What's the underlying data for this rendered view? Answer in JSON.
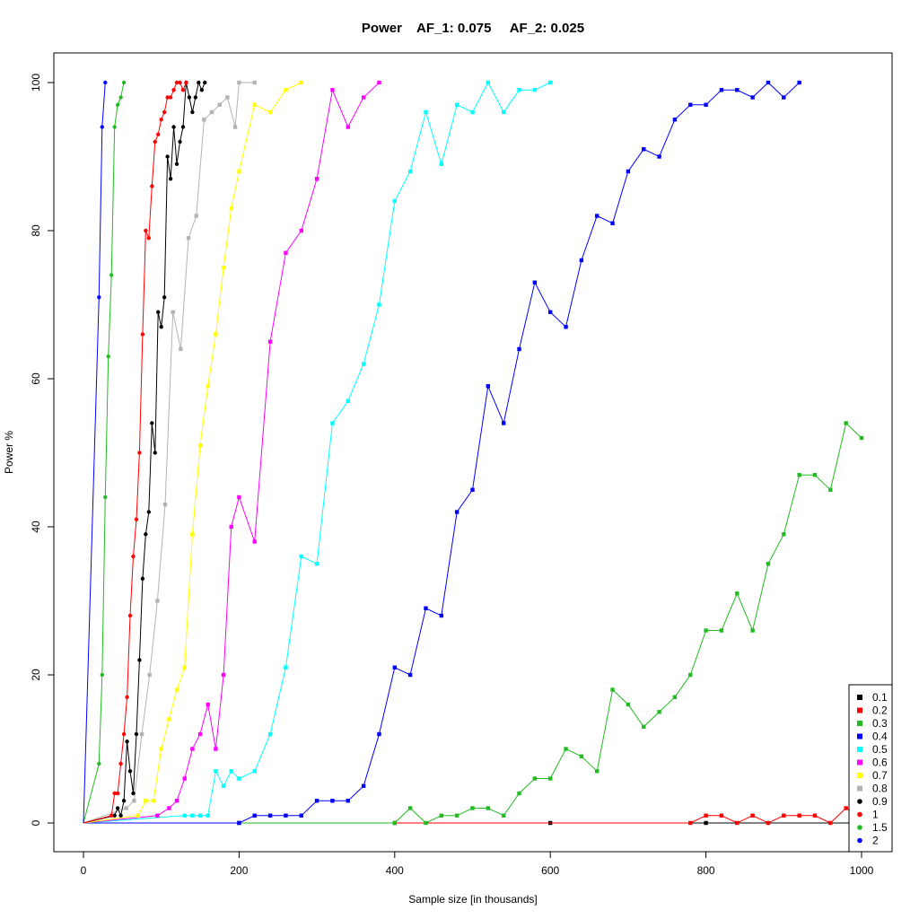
{
  "chart_data": {
    "type": "line",
    "title": "Power    AF_1: 0.075     AF_2: 0.025",
    "xlabel": "Sample size [in thousands]",
    "ylabel": "Power %",
    "xlim": [
      0,
      1000
    ],
    "ylim": [
      0,
      100
    ],
    "xticks": [
      0,
      200,
      400,
      600,
      800,
      1000
    ],
    "yticks": [
      0,
      20,
      40,
      60,
      80,
      100
    ],
    "grid": false,
    "legend_position": "bottom-right",
    "series": [
      {
        "name": "0.1",
        "color": "#000000",
        "marker": "square",
        "x": [
          0,
          200,
          400,
          600,
          800,
          1000
        ],
        "y": [
          0,
          0,
          0,
          0,
          0,
          0
        ]
      },
      {
        "name": "0.2",
        "color": "#ff0000",
        "marker": "square",
        "x": [
          0,
          780,
          800,
          820,
          840,
          860,
          880,
          900,
          920,
          940,
          960,
          980,
          1000
        ],
        "y": [
          0,
          0,
          1,
          1,
          0,
          1,
          0,
          1,
          1,
          1,
          0,
          2,
          1
        ]
      },
      {
        "name": "0.3",
        "color": "#22bb22",
        "marker": "square",
        "x": [
          0,
          400,
          420,
          440,
          460,
          480,
          500,
          520,
          540,
          560,
          580,
          600,
          620,
          640,
          660,
          680,
          700,
          720,
          740,
          760,
          780,
          800,
          820,
          840,
          860,
          880,
          900,
          920,
          940,
          960,
          980,
          1000
        ],
        "y": [
          0,
          0,
          2,
          0,
          1,
          1,
          2,
          2,
          1,
          4,
          6,
          6,
          10,
          9,
          7,
          18,
          16,
          13,
          15,
          17,
          20,
          26,
          26,
          31,
          26,
          35,
          39,
          47,
          47,
          45,
          54,
          52
        ]
      },
      {
        "name": "0.4",
        "color": "#0000ff",
        "marker": "square",
        "x": [
          0,
          200,
          220,
          240,
          260,
          280,
          300,
          320,
          340,
          360,
          380,
          400,
          420,
          440,
          460,
          480,
          500,
          520,
          540,
          560,
          580,
          600,
          620,
          640,
          660,
          680,
          700,
          720,
          740,
          760,
          780,
          800,
          820,
          840,
          860,
          880,
          900,
          920
        ],
        "y": [
          0,
          0,
          1,
          1,
          1,
          1,
          3,
          3,
          3,
          5,
          12,
          21,
          20,
          29,
          28,
          42,
          45,
          59,
          54,
          64,
          73,
          69,
          67,
          76,
          82,
          81,
          88,
          91,
          90,
          95,
          97,
          97,
          99,
          99,
          98,
          100,
          98,
          100
        ]
      },
      {
        "name": "0.5",
        "color": "#00ffff",
        "marker": "square",
        "x": [
          0,
          130,
          140,
          150,
          160,
          170,
          180,
          190,
          200,
          220,
          240,
          260,
          280,
          300,
          320,
          340,
          360,
          380,
          400,
          420,
          440,
          460,
          480,
          500,
          520,
          540,
          560,
          580,
          600
        ],
        "y": [
          0,
          1,
          1,
          1,
          1,
          7,
          5,
          7,
          6,
          7,
          12,
          21,
          36,
          35,
          54,
          57,
          62,
          70,
          84,
          88,
          96,
          89,
          97,
          96,
          100,
          96,
          99,
          99,
          100
        ]
      },
      {
        "name": "0.6",
        "color": "#ff00ff",
        "marker": "square",
        "x": [
          0,
          95,
          110,
          120,
          130,
          140,
          150,
          160,
          170,
          180,
          190,
          200,
          220,
          240,
          260,
          280,
          300,
          320,
          340,
          360,
          380
        ],
        "y": [
          0,
          1,
          2,
          3,
          6,
          10,
          12,
          16,
          10,
          20,
          40,
          44,
          38,
          65,
          77,
          80,
          87,
          99,
          94,
          98,
          100
        ]
      },
      {
        "name": "0.7",
        "color": "#ffff00",
        "marker": "square",
        "x": [
          0,
          70,
          80,
          90,
          100,
          110,
          120,
          130,
          140,
          150,
          160,
          170,
          180,
          190,
          200,
          220,
          240,
          260,
          280
        ],
        "y": [
          0,
          1,
          3,
          3,
          10,
          14,
          18,
          21,
          39,
          51,
          59,
          66,
          75,
          83,
          88,
          97,
          96,
          99,
          100
        ]
      },
      {
        "name": "0.8",
        "color": "#b3b3b3",
        "marker": "square",
        "x": [
          0,
          55,
          65,
          75,
          85,
          95,
          105,
          115,
          125,
          135,
          145,
          155,
          165,
          175,
          185,
          195,
          200,
          220
        ],
        "y": [
          0,
          2,
          3,
          12,
          20,
          30,
          43,
          69,
          64,
          79,
          82,
          95,
          96,
          97,
          98,
          94,
          100,
          100
        ]
      },
      {
        "name": "0.9",
        "color": "#000000",
        "marker": "circle",
        "x": [
          0,
          40,
          44,
          48,
          52,
          56,
          60,
          64,
          68,
          72,
          76,
          80,
          84,
          88,
          92,
          96,
          100,
          104,
          108,
          112,
          116,
          120,
          124,
          128,
          132,
          136,
          140,
          144,
          148,
          152,
          156
        ],
        "y": [
          0,
          1,
          2,
          1,
          3,
          11,
          7,
          4,
          12,
          22,
          33,
          39,
          42,
          54,
          50,
          69,
          67,
          71,
          90,
          87,
          94,
          89,
          92,
          94,
          100,
          98,
          96,
          98,
          100,
          99,
          100
        ]
      },
      {
        "name": "1",
        "color": "#ff0000",
        "marker": "circle",
        "x": [
          0,
          36,
          40,
          44,
          48,
          52,
          56,
          60,
          64,
          68,
          72,
          76,
          80,
          84,
          88,
          92,
          96,
          100,
          104,
          108,
          112,
          116,
          120,
          124,
          128,
          132
        ],
        "y": [
          0,
          1,
          4,
          4,
          8,
          12,
          17,
          28,
          36,
          41,
          50,
          66,
          80,
          79,
          86,
          92,
          93,
          95,
          96,
          98,
          98,
          99,
          100,
          100,
          99,
          100
        ]
      },
      {
        "name": "1.5",
        "color": "#22bb22",
        "marker": "circle",
        "x": [
          0,
          20,
          24,
          28,
          32,
          36,
          40,
          44,
          48,
          52
        ],
        "y": [
          0,
          8,
          20,
          44,
          63,
          74,
          94,
          97,
          98,
          100
        ]
      },
      {
        "name": "2",
        "color": "#0000ff",
        "marker": "circle",
        "x": [
          0,
          20,
          24,
          28
        ],
        "y": [
          0,
          71,
          94,
          100
        ]
      }
    ]
  }
}
